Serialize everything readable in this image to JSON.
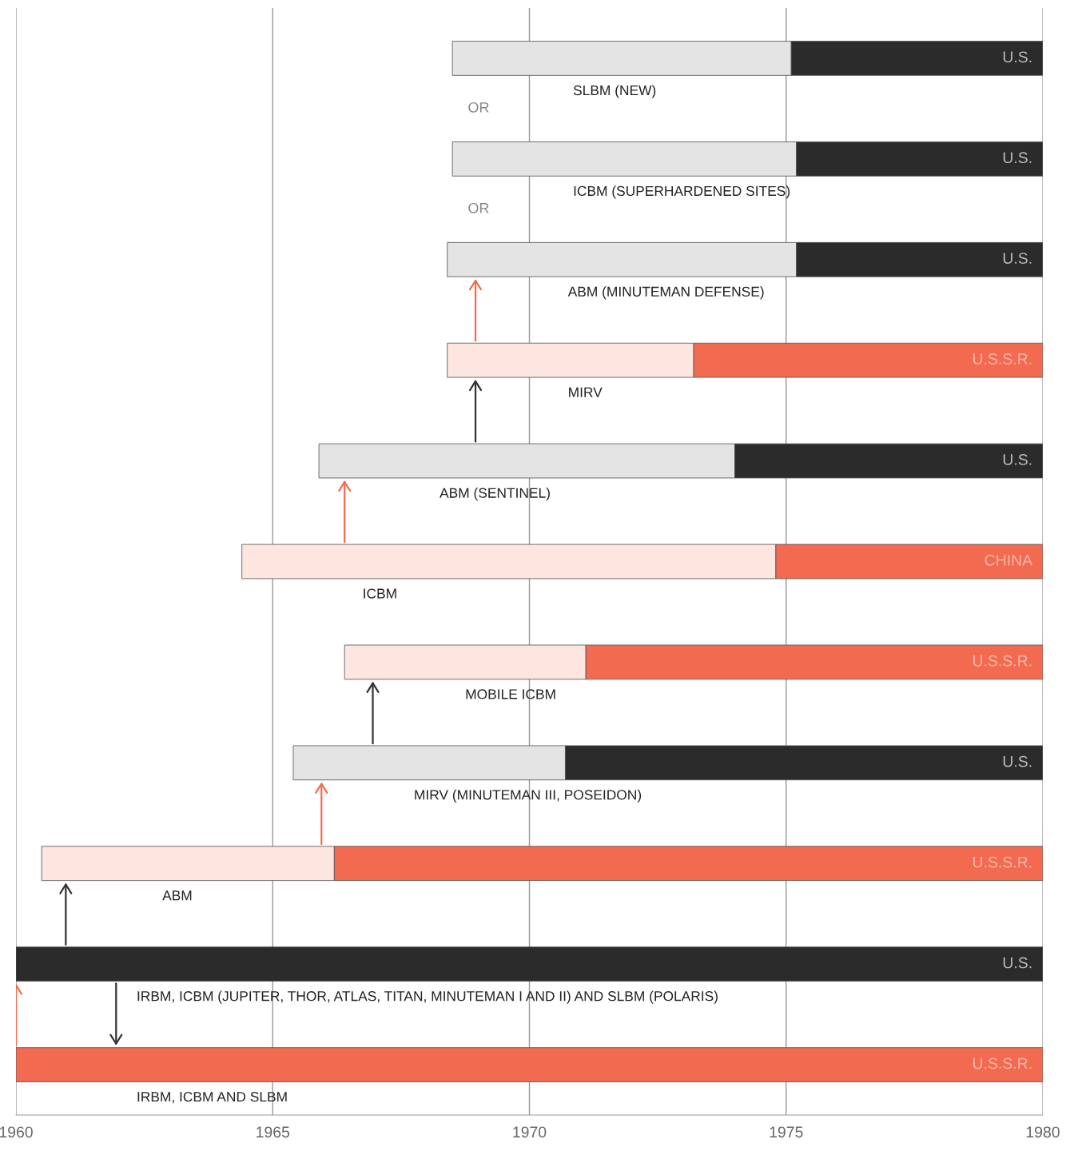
{
  "chart_data": {
    "type": "bar",
    "orientation": "horizontal",
    "categories": [
      "SLBM (NEW)",
      "ICBM (SUPERHARDENED SITES)",
      "ABM (MINUTEMAN DEFENSE)",
      "MIRV",
      "ABM (SENTINEL)",
      "ICBM",
      "MOBILE ICBM",
      "MIRV (MINUTEMAN III, POSEIDON)",
      "ABM",
      "IRBM, ICBM (JUPITER, THOR, ATLAS, TITAN, MINUTEMAN I AND II) AND SLBM (POLARIS)",
      "IRBM, ICBM AND SLBM"
    ],
    "series": [
      {
        "base": [
          1968.5,
          1968.5,
          1968.4,
          1968.4,
          1965.9,
          1964.4,
          1966.4,
          1965.4,
          1960.5,
          null,
          null
        ],
        "values": [
          6.6,
          6.7,
          6.8,
          4.8,
          8.1,
          10.4,
          4.7,
          5.3,
          5.7,
          null,
          null
        ],
        "colors": [
          "#e4e4e4",
          "#e4e4e4",
          "#e4e4e4",
          "#fde6df",
          "#e4e4e4",
          "#fde6df",
          "#fde6df",
          "#e4e4e4",
          "#fde6df",
          "#e4e4e4",
          "#fde6df"
        ]
      },
      {
        "base": [
          1975.1,
          1975.2,
          1975.2,
          1973.2,
          1974.0,
          1974.8,
          1971.1,
          1970.7,
          1966.2,
          1960,
          1960
        ],
        "values": [
          4.9,
          4.8,
          4.8,
          6.8,
          6.0,
          5.2,
          8.9,
          9.3,
          13.8,
          20,
          20
        ],
        "colors": [
          "#2b2b2b",
          "#2b2b2b",
          "#2b2b2b",
          "#f26b50",
          "#2b2b2b",
          "#f26b50",
          "#f26b50",
          "#2b2b2b",
          "#f26b50",
          "#2b2b2b",
          "#f26b50"
        ]
      }
    ],
    "annotations": [
      "U.S.",
      "U.S.",
      "U.S.",
      "U.S.S.R.",
      "U.S.",
      "CHINA",
      "U.S.S.R.",
      "U.S.",
      "U.S.S.R.",
      "U.S.",
      "U.S.S.R.",
      "OR",
      "OR"
    ],
    "xlim": [
      1960,
      1980
    ],
    "xticks": [
      1960,
      1965,
      1970,
      1975,
      1980
    ],
    "grid": "x",
    "tick_labels": "x"
  }
}
